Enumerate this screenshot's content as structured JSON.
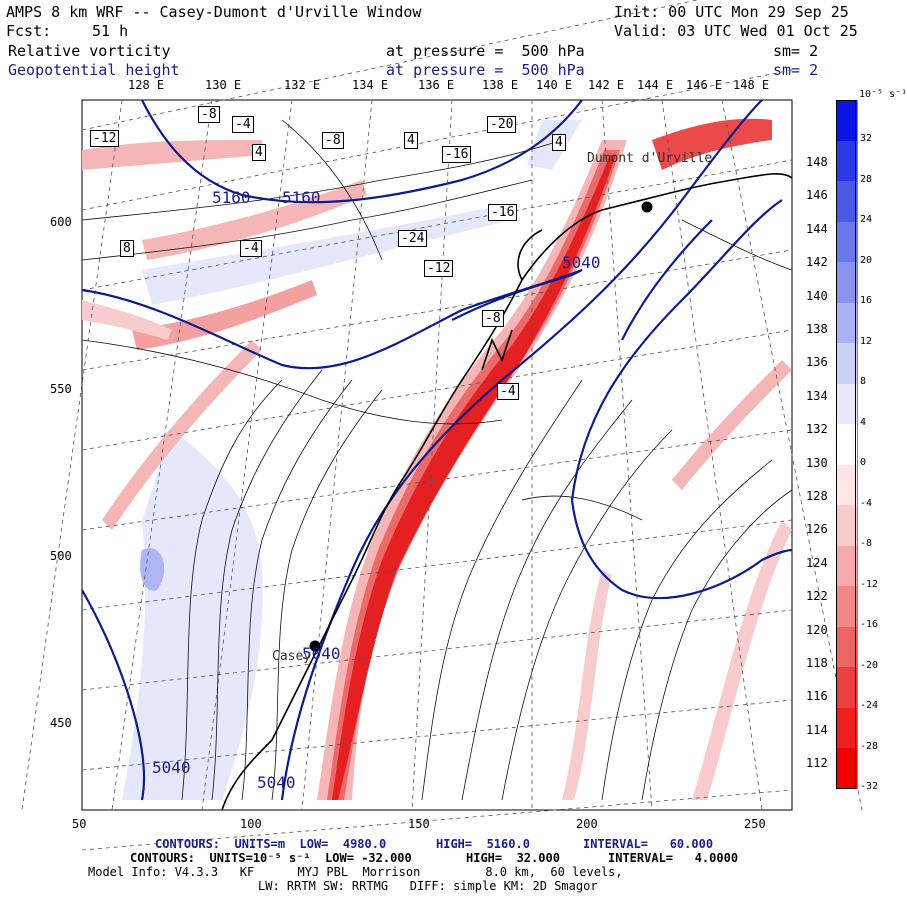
{
  "header": {
    "title": "AMPS 8 km WRF -- Casey-Dumont d'Urville Window",
    "init": "Init: 00 UTC Mon 29 Sep 25",
    "fcst_label": "Fcst:",
    "fcst_value": "51 h",
    "valid": "Valid: 03 UTC Wed 01 Oct 25"
  },
  "fields": [
    {
      "name": "Relative vorticity",
      "level": "at pressure =  500 hPa",
      "sm": "sm= 2",
      "color": "#000000"
    },
    {
      "name": "Geopotential height",
      "level": "at pressure =  500 hPa",
      "sm": "sm= 2",
      "color": "#1c1c8c"
    }
  ],
  "lon_labels": [
    "128 E",
    "130 E",
    "132 E",
    "134 E",
    "136 E",
    "138 E",
    "140 E",
    "142 E",
    "144 E",
    "146 E",
    "148 E"
  ],
  "lat_labels_right": [
    "148 E",
    "146 E",
    "144 E",
    "142 E",
    "140 E",
    "138 E",
    "136 E",
    "134 E",
    "132 E",
    "130 E",
    "128 E",
    "126 E",
    "124 E",
    "122 E",
    "120 E",
    "118 E",
    "116 E",
    "114 E",
    "112 E"
  ],
  "x_ticks": [
    "50",
    "100",
    "150",
    "200",
    "250"
  ],
  "y_ticks": [
    "600",
    "550",
    "500",
    "450"
  ],
  "colorbar": {
    "unit": "10⁻⁵ s⁻¹",
    "labels": [
      "32",
      "28",
      "24",
      "20",
      "16",
      "12",
      "8",
      "4",
      "0",
      "-4",
      "-8",
      "-12",
      "-16",
      "-20",
      "-24",
      "-28",
      "-32"
    ],
    "colors": [
      "#0a14e6",
      "#2a3ae8",
      "#4a5ae6",
      "#6a78ea",
      "#8a94ee",
      "#aab2f2",
      "#cad0f6",
      "#e8eafc",
      "#ffffff",
      "#fce6e6",
      "#f8cccc",
      "#f4aaaa",
      "#f08888",
      "#ec6464",
      "#ea4040",
      "#ec2020",
      "#f00000"
    ]
  },
  "map_labels": {
    "height_labels": [
      "5160",
      "5160",
      "5040",
      "5040",
      "5040",
      "5040"
    ],
    "stations": [
      "Dumont d'Urville",
      "Casey"
    ],
    "vort_boxes": [
      "-12",
      "-8",
      "-4",
      "4",
      "8",
      "-4",
      "-8",
      "4",
      "-16",
      "-20",
      "-24",
      "-12",
      "-16",
      "4",
      "-8",
      "-4"
    ]
  },
  "footer": {
    "line1_contours": "CONTOURS:  UNITS=m  LOW=  4980.0",
    "line1_high": "HIGH=  5160.0",
    "line1_interval": "INTERVAL=   60.000",
    "line2_contours": "CONTOURS:  UNITS=10⁻⁵ s⁻¹  LOW= -32.000",
    "line2_high": "HIGH=  32.000",
    "line2_interval": "INTERVAL=   4.0000",
    "line3": "Model Info: V4.3.3   KF      MYJ PBL  Morrison         8.0 km,  60 levels,",
    "line4": "LW: RRTM SW: RRTMG   DIFF: simple KM: 2D Smagor"
  }
}
